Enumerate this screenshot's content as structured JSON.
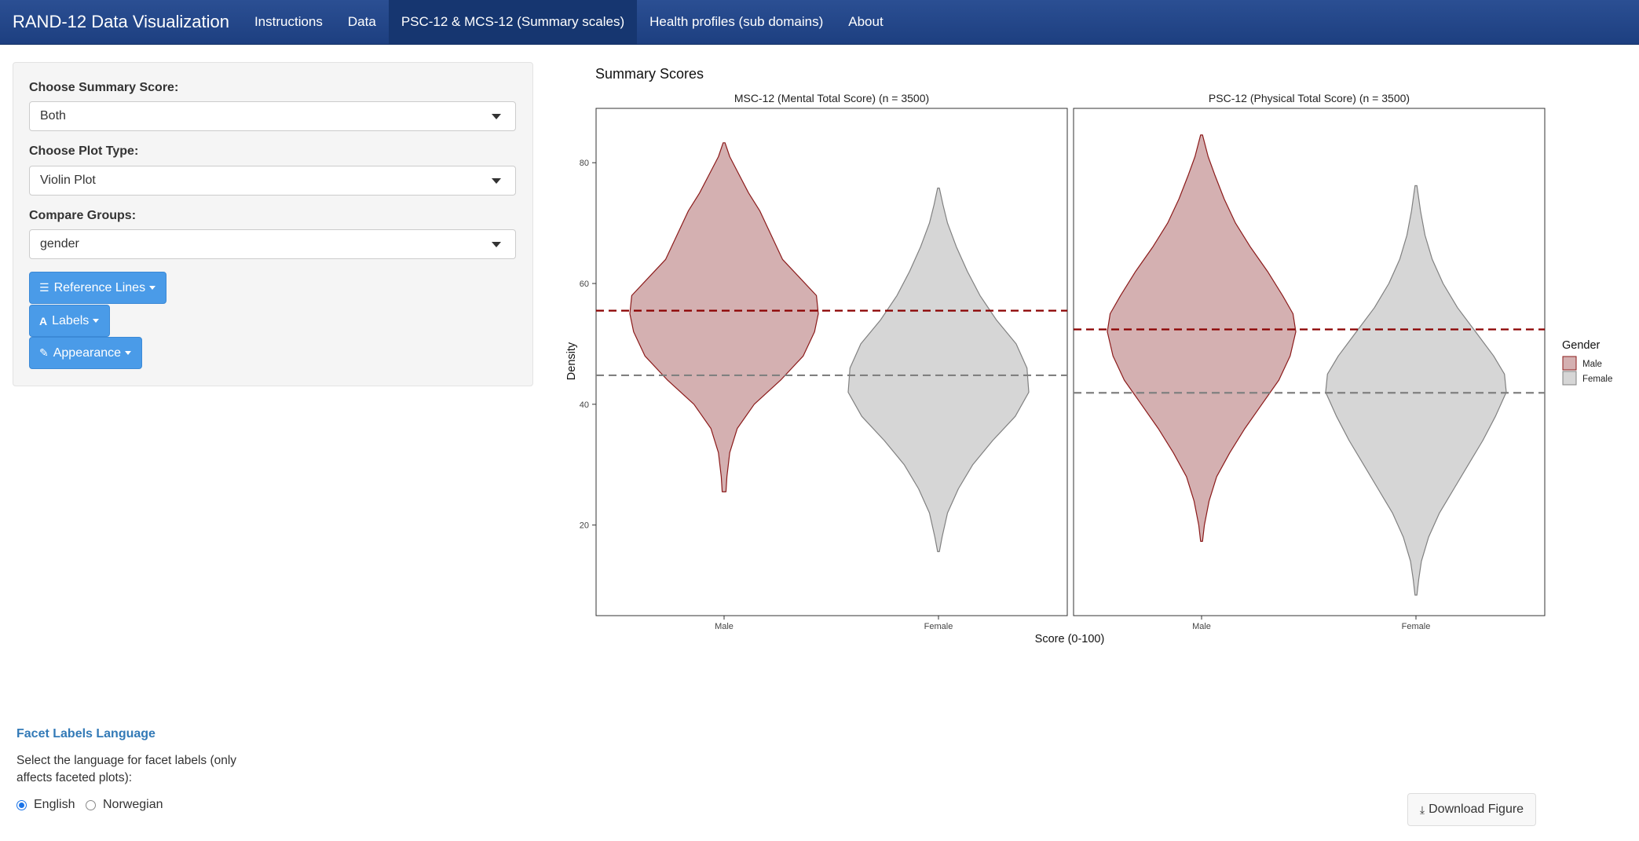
{
  "navbar": {
    "brand": "RAND-12 Data Visualization",
    "tabs": [
      {
        "label": "Instructions",
        "active": false
      },
      {
        "label": "Data",
        "active": false
      },
      {
        "label": "PSC-12 & MCS-12 (Summary scales)",
        "active": true
      },
      {
        "label": "Health profiles (sub domains)",
        "active": false
      },
      {
        "label": "About",
        "active": false
      }
    ]
  },
  "sidebar": {
    "summary_score": {
      "label": "Choose Summary Score:",
      "value": "Both"
    },
    "plot_type": {
      "label": "Choose Plot Type:",
      "value": "Violin Plot"
    },
    "compare_groups": {
      "label": "Compare Groups:",
      "value": "gender"
    },
    "buttons": {
      "reference_lines": "Reference Lines",
      "labels": "Labels",
      "appearance": "Appearance"
    }
  },
  "facet_language": {
    "title": "Facet Labels Language",
    "description": "Select the language for facet labels (only affects faceted plots):",
    "options": [
      {
        "label": "English",
        "checked": true
      },
      {
        "label": "Norwegian",
        "checked": false
      }
    ]
  },
  "download": {
    "label": "Download Figure"
  },
  "colors": {
    "male_fill": "#d4b0b1",
    "male_line": "#8b1a1a",
    "female_fill": "#d6d6d6",
    "female_line": "#808080",
    "male_ref": "#8b0000",
    "female_ref": "#808080",
    "nav": "#1f4385",
    "button": "#4a9be8"
  },
  "chart_data": {
    "type": "violin",
    "title": "Summary Scores",
    "xlabel": "Score (0-100)",
    "ylabel": "Density",
    "ylim": [
      5,
      89
    ],
    "yticks": [
      20,
      40,
      60,
      80
    ],
    "categories": [
      "Male",
      "Female"
    ],
    "legend": {
      "title": "Gender",
      "position": "right",
      "entries": [
        "Male",
        "Female"
      ]
    },
    "facets": [
      {
        "title": "MSC-12 (Mental Total Score) (n = 3500)",
        "groups": [
          {
            "name": "Male",
            "min": 25.5,
            "max": 83.3,
            "profile": [
              [
                25.5,
                0.02
              ],
              [
                28,
                0.03
              ],
              [
                32,
                0.06
              ],
              [
                36,
                0.14
              ],
              [
                40,
                0.32
              ],
              [
                44,
                0.6
              ],
              [
                48,
                0.84
              ],
              [
                52,
                0.96
              ],
              [
                55,
                1.0
              ],
              [
                58,
                0.98
              ],
              [
                61,
                0.8
              ],
              [
                64,
                0.62
              ],
              [
                68,
                0.5
              ],
              [
                72,
                0.38
              ],
              [
                75,
                0.26
              ],
              [
                78,
                0.16
              ],
              [
                81,
                0.06
              ],
              [
                83.3,
                0.01
              ]
            ]
          },
          {
            "name": "Female",
            "min": 15.6,
            "max": 75.8,
            "profile": [
              [
                15.6,
                0.01
              ],
              [
                18,
                0.04
              ],
              [
                22,
                0.1
              ],
              [
                26,
                0.22
              ],
              [
                30,
                0.38
              ],
              [
                34,
                0.6
              ],
              [
                38,
                0.85
              ],
              [
                42,
                1.0
              ],
              [
                46,
                0.98
              ],
              [
                50,
                0.86
              ],
              [
                54,
                0.64
              ],
              [
                58,
                0.46
              ],
              [
                62,
                0.32
              ],
              [
                66,
                0.2
              ],
              [
                70,
                0.1
              ],
              [
                73,
                0.05
              ],
              [
                75.8,
                0.01
              ]
            ]
          }
        ],
        "reference_lines": {
          "Male": 55.5,
          "Female": 44.8
        }
      },
      {
        "title": "PSC-12 (Physical Total Score) (n = 3500)",
        "groups": [
          {
            "name": "Male",
            "min": 17.3,
            "max": 84.6,
            "profile": [
              [
                17.3,
                0.01
              ],
              [
                20,
                0.03
              ],
              [
                24,
                0.08
              ],
              [
                28,
                0.16
              ],
              [
                32,
                0.3
              ],
              [
                36,
                0.46
              ],
              [
                40,
                0.64
              ],
              [
                44,
                0.82
              ],
              [
                48,
                0.94
              ],
              [
                52,
                1.0
              ],
              [
                55,
                0.97
              ],
              [
                58,
                0.86
              ],
              [
                62,
                0.7
              ],
              [
                66,
                0.52
              ],
              [
                70,
                0.36
              ],
              [
                74,
                0.24
              ],
              [
                78,
                0.14
              ],
              [
                81,
                0.07
              ],
              [
                84.6,
                0.01
              ]
            ]
          },
          {
            "name": "Female",
            "min": 8.4,
            "max": 76.2,
            "profile": [
              [
                8.4,
                0.01
              ],
              [
                11,
                0.03
              ],
              [
                14,
                0.06
              ],
              [
                18,
                0.14
              ],
              [
                22,
                0.26
              ],
              [
                26,
                0.42
              ],
              [
                30,
                0.58
              ],
              [
                34,
                0.74
              ],
              [
                38,
                0.88
              ],
              [
                42,
                1.0
              ],
              [
                45,
                0.98
              ],
              [
                48,
                0.86
              ],
              [
                52,
                0.66
              ],
              [
                56,
                0.46
              ],
              [
                60,
                0.3
              ],
              [
                64,
                0.18
              ],
              [
                68,
                0.1
              ],
              [
                72,
                0.05
              ],
              [
                76.2,
                0.01
              ]
            ]
          }
        ],
        "reference_lines": {
          "Male": 52.4,
          "Female": 41.9
        }
      }
    ]
  }
}
